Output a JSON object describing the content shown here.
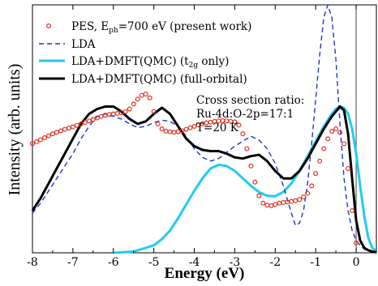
{
  "chart_data": {
    "type": "line",
    "xlabel": "Energy (eV)",
    "ylabel": "Intensity (arb. units)",
    "xlim": [
      -8,
      0.5
    ],
    "ylim": [
      0,
      1.0
    ],
    "x_ticks": [
      -8,
      -7,
      -6,
      -5,
      -4,
      -3,
      -2,
      -1,
      0
    ],
    "grid": false,
    "legend_position": "top-left",
    "annotation": {
      "line1": "Cross section ratio:",
      "line2": "Ru-4d:O-2p=17:1",
      "line3": "T=20 K"
    },
    "vertical_line_x": 0,
    "series": [
      {
        "name": "PES, E_ph=700 eV (present work)",
        "legend_label": "PES, E",
        "legend_sub": "ph",
        "legend_rest": "=700 eV (present work)",
        "style": "markers",
        "color": "#e0301e",
        "x": [
          -8.0,
          -7.9,
          -7.8,
          -7.7,
          -7.6,
          -7.5,
          -7.4,
          -7.3,
          -7.2,
          -7.1,
          -7.0,
          -6.9,
          -6.8,
          -6.7,
          -6.6,
          -6.5,
          -6.4,
          -6.3,
          -6.2,
          -6.1,
          -6.0,
          -5.9,
          -5.8,
          -5.7,
          -5.6,
          -5.5,
          -5.4,
          -5.3,
          -5.2,
          -5.1,
          -5.0,
          -4.9,
          -4.8,
          -4.7,
          -4.6,
          -4.5,
          -4.4,
          -4.3,
          -4.2,
          -4.1,
          -4.0,
          -3.9,
          -3.8,
          -3.7,
          -3.6,
          -3.5,
          -3.4,
          -3.3,
          -3.2,
          -3.1,
          -3.0,
          -2.9,
          -2.8,
          -2.7,
          -2.6,
          -2.5,
          -2.4,
          -2.3,
          -2.2,
          -2.1,
          -2.0,
          -1.9,
          -1.8,
          -1.7,
          -1.6,
          -1.5,
          -1.4,
          -1.3,
          -1.2,
          -1.1,
          -1.0,
          -0.9,
          -0.8,
          -0.7,
          -0.6,
          -0.5,
          -0.4,
          -0.3,
          -0.2,
          -0.1,
          0.0
        ],
        "values": [
          0.44,
          0.448,
          0.456,
          0.464,
          0.472,
          0.48,
          0.486,
          0.492,
          0.498,
          0.503,
          0.508,
          0.514,
          0.52,
          0.526,
          0.532,
          0.538,
          0.544,
          0.55,
          0.555,
          0.558,
          0.56,
          0.562,
          0.565,
          0.57,
          0.58,
          0.6,
          0.62,
          0.635,
          0.64,
          0.625,
          0.57,
          0.52,
          0.5,
          0.49,
          0.488,
          0.486,
          0.488,
          0.492,
          0.498,
          0.504,
          0.51,
          0.516,
          0.52,
          0.524,
          0.527,
          0.53,
          0.532,
          0.533,
          0.532,
          0.53,
          0.528,
          0.515,
          0.48,
          0.42,
          0.35,
          0.285,
          0.23,
          0.2,
          0.192,
          0.19,
          0.195,
          0.2,
          0.203,
          0.205,
          0.207,
          0.21,
          0.215,
          0.225,
          0.24,
          0.27,
          0.32,
          0.37,
          0.42,
          0.46,
          0.49,
          0.5,
          0.485,
          0.44,
          0.34,
          0.17,
          0.04
        ]
      },
      {
        "name": "LDA",
        "style": "dashed",
        "color": "#2233cc",
        "x": [
          -8.0,
          -7.8,
          -7.6,
          -7.4,
          -7.2,
          -7.0,
          -6.8,
          -6.6,
          -6.4,
          -6.2,
          -6.0,
          -5.8,
          -5.6,
          -5.4,
          -5.2,
          -5.0,
          -4.8,
          -4.6,
          -4.4,
          -4.2,
          -4.0,
          -3.8,
          -3.6,
          -3.4,
          -3.2,
          -3.0,
          -2.8,
          -2.6,
          -2.4,
          -2.2,
          -2.0,
          -1.8,
          -1.6,
          -1.5,
          -1.4,
          -1.3,
          -1.2,
          -1.1,
          -1.0,
          -0.9,
          -0.8,
          -0.7,
          -0.6,
          -0.5,
          -0.4,
          -0.3,
          -0.2,
          -0.1,
          0.0,
          0.1,
          0.2,
          0.3
        ],
        "values": [
          0.16,
          0.2,
          0.25,
          0.3,
          0.35,
          0.4,
          0.46,
          0.51,
          0.55,
          0.56,
          0.55,
          0.54,
          0.52,
          0.505,
          0.51,
          0.525,
          0.535,
          0.53,
          0.51,
          0.47,
          0.42,
          0.385,
          0.37,
          0.38,
          0.405,
          0.43,
          0.45,
          0.47,
          0.455,
          0.42,
          0.36,
          0.27,
          0.16,
          0.11,
          0.12,
          0.17,
          0.28,
          0.44,
          0.62,
          0.8,
          0.95,
          1.0,
          0.95,
          0.78,
          0.52,
          0.3,
          0.17,
          0.09,
          0.05,
          0.03,
          0.015,
          0.005
        ]
      },
      {
        "name": "LDA+DMFT(QMC) (t_2g only)",
        "legend_label": "LDA+DMFT(QMC) (t",
        "legend_sub": "2g",
        "legend_rest": " only)",
        "style": "solid",
        "color": "#22ccee",
        "x": [
          -6.0,
          -5.5,
          -5.0,
          -4.8,
          -4.6,
          -4.4,
          -4.2,
          -4.0,
          -3.8,
          -3.6,
          -3.4,
          -3.2,
          -3.0,
          -2.8,
          -2.6,
          -2.4,
          -2.2,
          -2.0,
          -1.8,
          -1.6,
          -1.4,
          -1.2,
          -1.0,
          -0.8,
          -0.6,
          -0.5,
          -0.4,
          -0.3,
          -0.2,
          -0.1,
          0.0,
          0.1,
          0.2,
          0.3,
          0.4,
          0.5
        ],
        "values": [
          0.0,
          0.005,
          0.03,
          0.055,
          0.09,
          0.14,
          0.195,
          0.25,
          0.3,
          0.34,
          0.355,
          0.35,
          0.33,
          0.3,
          0.27,
          0.245,
          0.23,
          0.228,
          0.245,
          0.28,
          0.33,
          0.39,
          0.45,
          0.51,
          0.56,
          0.58,
          0.59,
          0.585,
          0.56,
          0.5,
          0.4,
          0.27,
          0.15,
          0.06,
          0.02,
          0.005
        ]
      },
      {
        "name": "LDA+DMFT(QMC) (full-orbital)",
        "style": "solid-bold",
        "color": "#000000",
        "x": [
          -8.0,
          -7.8,
          -7.6,
          -7.4,
          -7.2,
          -7.0,
          -6.8,
          -6.6,
          -6.4,
          -6.2,
          -6.0,
          -5.8,
          -5.6,
          -5.4,
          -5.2,
          -5.0,
          -4.8,
          -4.6,
          -4.4,
          -4.2,
          -4.0,
          -3.8,
          -3.6,
          -3.4,
          -3.2,
          -3.0,
          -2.8,
          -2.6,
          -2.4,
          -2.2,
          -2.0,
          -1.8,
          -1.6,
          -1.4,
          -1.2,
          -1.0,
          -0.8,
          -0.6,
          -0.5,
          -0.4,
          -0.3,
          -0.2,
          -0.1,
          0.0,
          0.1,
          0.2,
          0.3,
          0.4,
          0.5
        ],
        "values": [
          0.17,
          0.22,
          0.28,
          0.34,
          0.4,
          0.46,
          0.52,
          0.56,
          0.58,
          0.59,
          0.59,
          0.57,
          0.54,
          0.52,
          0.53,
          0.56,
          0.585,
          0.56,
          0.51,
          0.46,
          0.43,
          0.415,
          0.41,
          0.41,
          0.4,
          0.385,
          0.38,
          0.39,
          0.395,
          0.37,
          0.33,
          0.3,
          0.3,
          0.33,
          0.38,
          0.44,
          0.5,
          0.55,
          0.57,
          0.59,
          0.575,
          0.48,
          0.3,
          0.13,
          0.05,
          0.02,
          0.01,
          0.005,
          0.002
        ]
      }
    ]
  }
}
